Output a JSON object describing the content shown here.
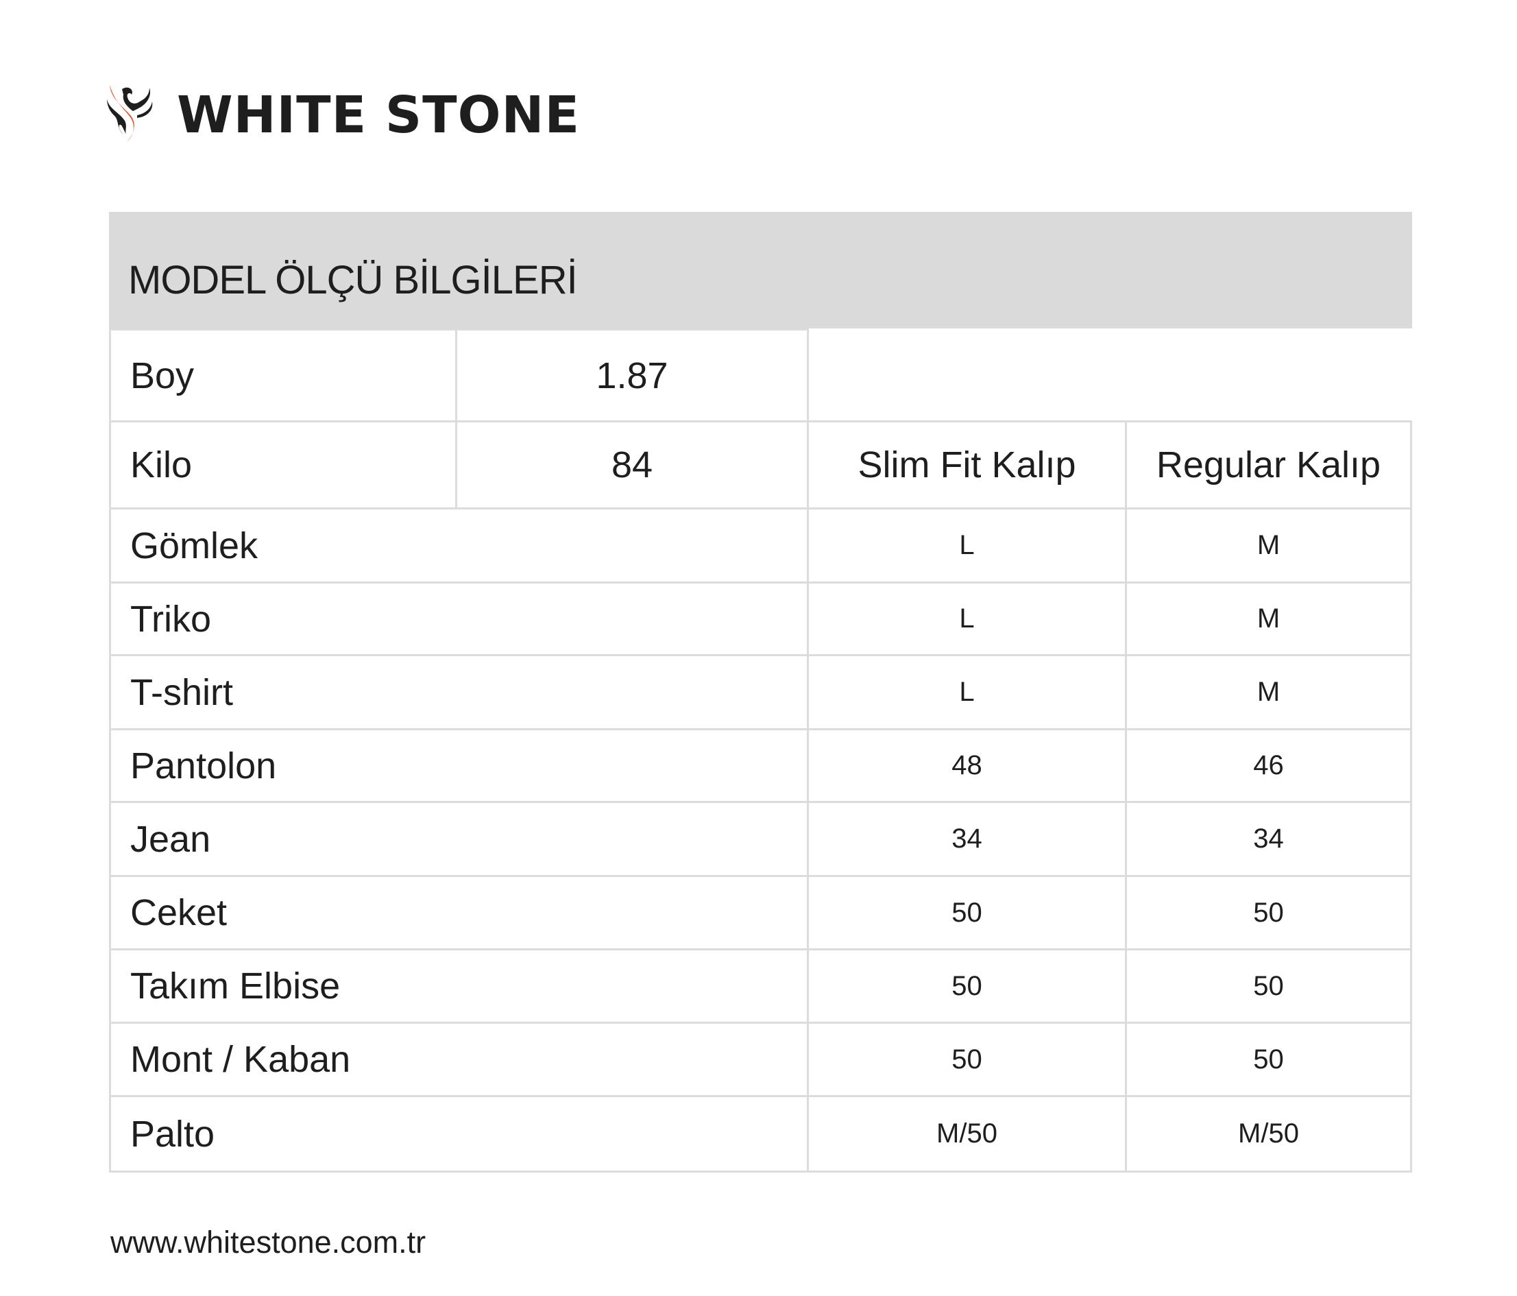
{
  "brand": {
    "name": "WHITE STONE",
    "logo_icon": "phoenix-logo",
    "accent_color": "#e8401c"
  },
  "title": "MODEL ÖLÇÜ BİLGİLERİ",
  "measurements": [
    {
      "label": "Boy",
      "value": "1.87"
    },
    {
      "label": "Kilo",
      "value": "84"
    }
  ],
  "columns": [
    "Slim Fit Kalıp",
    "Regular Kalıp"
  ],
  "rows": [
    {
      "item": "Gömlek",
      "slim": "L",
      "regular": "M"
    },
    {
      "item": "Triko",
      "slim": "L",
      "regular": "M"
    },
    {
      "item": "T-shirt",
      "slim": "L",
      "regular": "M"
    },
    {
      "item": "Pantolon",
      "slim": "48",
      "regular": "46"
    },
    {
      "item": "Jean",
      "slim": "34",
      "regular": "34"
    },
    {
      "item": "Ceket",
      "slim": "50",
      "regular": "50"
    },
    {
      "item": "Takım Elbise",
      "slim": "50",
      "regular": "50"
    },
    {
      "item": "Mont / Kaban",
      "slim": "50",
      "regular": "50"
    },
    {
      "item": "Palto",
      "slim": "M/50",
      "regular": "M/50"
    }
  ],
  "footer": {
    "website": "www.whitestone.com.tr"
  }
}
